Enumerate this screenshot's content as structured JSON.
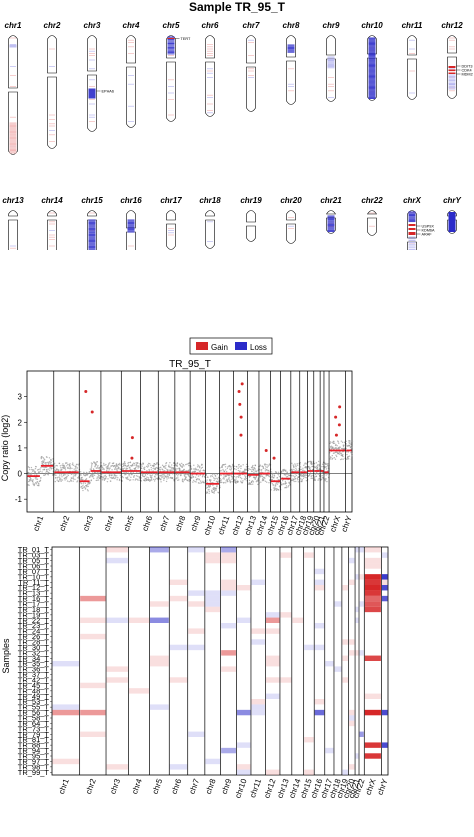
{
  "colors": {
    "gain": "#d62728",
    "loss": "#2b2bc9",
    "gain_light": "#f2b8b8",
    "loss_light": "#b8b8f0",
    "points": "#999999",
    "segment": "#e8202a"
  },
  "karyogram": {
    "title": "Sample TR_95_T",
    "row1": [
      "chr1",
      "chr2",
      "chr3",
      "chr4",
      "chr5",
      "chr6",
      "chr7",
      "chr8",
      "chr9",
      "chr10",
      "chr11",
      "chr12"
    ],
    "row2": [
      "chr13",
      "chr14",
      "chr15",
      "chr16",
      "chr17",
      "chr18",
      "chr19",
      "chr20",
      "chr21",
      "chr22",
      "chrX",
      "chrY"
    ],
    "gene_labels": {
      "chr3": [
        "EPHA6"
      ],
      "chr5": [
        "TERT"
      ],
      "chr12": [
        "DDIT3",
        "CDK4",
        "MDM2"
      ],
      "chrX": [
        "USP9X",
        "KDM6A",
        "ARAF"
      ]
    }
  },
  "chart_data": [
    {
      "type": "scatter",
      "title": "TR_95_T",
      "xlabel": "",
      "ylabel": "Copy ratio (log2)",
      "ylim": [
        -1.5,
        4
      ],
      "yticks": [
        -1,
        0,
        1,
        2,
        3
      ],
      "legend": {
        "placement": "top-center",
        "entries": [
          "Gain",
          "Loss"
        ]
      },
      "categories": [
        "chr1",
        "chr2",
        "chr3",
        "chr4",
        "chr5",
        "chr6",
        "chr7",
        "chr8",
        "chr9",
        "chr10",
        "chr11",
        "chr12",
        "chr13",
        "chr14",
        "chr15",
        "chr16",
        "chr17",
        "chr18",
        "chr19",
        "chr20",
        "chr21",
        "chr22",
        "chrX",
        "chrY"
      ],
      "segments": [
        {
          "chrom": "chr1",
          "value": -0.1
        },
        {
          "chrom": "chr1",
          "value": 0.3
        },
        {
          "chrom": "chr2",
          "value": 0.05
        },
        {
          "chrom": "chr3",
          "value": -0.3
        },
        {
          "chrom": "chr3",
          "value": 0.1
        },
        {
          "chrom": "chr4",
          "value": 0.05
        },
        {
          "chrom": "chr5",
          "value": 0.1
        },
        {
          "chrom": "chr6",
          "value": 0.05
        },
        {
          "chrom": "chr7",
          "value": 0.05
        },
        {
          "chrom": "chr8",
          "value": 0.05
        },
        {
          "chrom": "chr9",
          "value": 0.0
        },
        {
          "chrom": "chr10",
          "value": -0.4
        },
        {
          "chrom": "chr11",
          "value": 0.0
        },
        {
          "chrom": "chr12",
          "value": 0.0
        },
        {
          "chrom": "chr13",
          "value": -0.05
        },
        {
          "chrom": "chr14",
          "value": 0.0
        },
        {
          "chrom": "chr15",
          "value": -0.3
        },
        {
          "chrom": "chr16",
          "value": -0.2
        },
        {
          "chrom": "chr17",
          "value": 0.05
        },
        {
          "chrom": "chr18",
          "value": 0.05
        },
        {
          "chrom": "chr19",
          "value": 0.1
        },
        {
          "chrom": "chr20",
          "value": 0.1
        },
        {
          "chrom": "chr21",
          "value": 0.1
        },
        {
          "chrom": "chr22",
          "value": 0.05
        },
        {
          "chrom": "chrX",
          "value": 0.9
        },
        {
          "chrom": "chrY",
          "value": 0.9
        }
      ],
      "outliers": [
        {
          "chrom": "chr3",
          "value": 3.2
        },
        {
          "chrom": "chr3",
          "value": 2.4
        },
        {
          "chrom": "chr5",
          "value": 1.4
        },
        {
          "chrom": "chr5",
          "value": 0.6
        },
        {
          "chrom": "chr12",
          "value": 3.5
        },
        {
          "chrom": "chr12",
          "value": 3.2
        },
        {
          "chrom": "chr12",
          "value": 2.7
        },
        {
          "chrom": "chr12",
          "value": 2.2
        },
        {
          "chrom": "chr12",
          "value": 1.5
        },
        {
          "chrom": "chr14",
          "value": 0.9
        },
        {
          "chrom": "chr15",
          "value": 0.6
        },
        {
          "chrom": "chrX",
          "value": 2.6
        },
        {
          "chrom": "chrX",
          "value": 2.2
        },
        {
          "chrom": "chrX",
          "value": 1.9
        },
        {
          "chrom": "chrX",
          "value": 1.5
        }
      ]
    },
    {
      "type": "heatmap",
      "xlabel": "",
      "ylabel": "Samples",
      "columns": [
        "chr1",
        "chr2",
        "chr3",
        "chr4",
        "chr5",
        "chr6",
        "chr7",
        "chr8",
        "chr9",
        "chr10",
        "chr11",
        "chr12",
        "chr13",
        "chr14",
        "chr15",
        "chr16",
        "chr17",
        "chr18",
        "chr19",
        "chr20",
        "chr21",
        "chr22",
        "chrX",
        "chrY"
      ],
      "rows": [
        "TR_01_T",
        "TR_03_T",
        "TR_05_T",
        "TR_06_T",
        "TR_07_T",
        "TR_10_T",
        "TR_11_T",
        "TR_12_T",
        "TR_13_T",
        "TR_16_T",
        "TR_17_T",
        "TR_18_T",
        "TR_19_T",
        "TR_22_T",
        "TR_23_T",
        "TR_24_T",
        "TR_26_T",
        "TR_28_T",
        "TR_30_T",
        "TR_32_T",
        "TR_34_T",
        "TR_35_T",
        "TR_36_T",
        "TR_37_T",
        "TR_42_T",
        "TR_45_T",
        "TR_48_T",
        "TR_49_T",
        "TR_53_T",
        "TR_55_T",
        "TR_56_T",
        "TR_58_T",
        "TR_64_T",
        "TR_73_T",
        "TR_79_T",
        "TR_81_T",
        "TR_88_T",
        "TR_94_T",
        "TR_95_T",
        "TR_97_T",
        "TR_98_T",
        "TR_99_T"
      ],
      "cells": [
        {
          "row": "TR_10_T",
          "col": "chrX",
          "value": 1.0
        },
        {
          "row": "TR_11_T",
          "col": "chrX",
          "value": 0.9
        },
        {
          "row": "TR_12_T",
          "col": "chrX",
          "value": 1.0
        },
        {
          "row": "TR_13_T",
          "col": "chrX",
          "value": 0.9
        },
        {
          "row": "TR_16_T",
          "col": "chrX",
          "value": 0.6
        },
        {
          "row": "TR_17_T",
          "col": "chrX",
          "value": 0.7
        },
        {
          "row": "TR_18_T",
          "col": "chrX",
          "value": 0.8
        },
        {
          "row": "TR_34_T",
          "col": "chrX",
          "value": 0.8
        },
        {
          "row": "TR_56_T",
          "col": "chrX",
          "value": 1.0
        },
        {
          "row": "TR_88_T",
          "col": "chrX",
          "value": 0.9
        },
        {
          "row": "TR_95_T",
          "col": "chrX",
          "value": 0.9
        },
        {
          "row": "TR_10_T",
          "col": "chrY",
          "value": -0.9
        },
        {
          "row": "TR_12_T",
          "col": "chrY",
          "value": -0.8
        },
        {
          "row": "TR_16_T",
          "col": "chrY",
          "value": -0.7
        },
        {
          "row": "TR_56_T",
          "col": "chrY",
          "value": -0.8
        },
        {
          "row": "TR_88_T",
          "col": "chrY",
          "value": -0.8
        },
        {
          "row": "TR_16_T",
          "col": "chr2",
          "value": 0.3
        },
        {
          "row": "TR_56_T",
          "col": "chr1",
          "value": 0.3
        },
        {
          "row": "TR_56_T",
          "col": "chr2",
          "value": 0.3
        },
        {
          "row": "TR_56_T",
          "col": "chr10",
          "value": -0.4
        },
        {
          "row": "TR_56_T",
          "col": "chr16",
          "value": -0.6
        },
        {
          "row": "TR_22_T",
          "col": "chr5",
          "value": -0.4
        },
        {
          "row": "TR_22_T",
          "col": "chr12",
          "value": 0.3
        },
        {
          "row": "TR_01_T",
          "col": "chr5",
          "value": -0.2
        },
        {
          "row": "TR_01_T",
          "col": "chr9",
          "value": -0.2
        },
        {
          "row": "TR_32_T",
          "col": "chr9",
          "value": 0.3
        },
        {
          "row": "TR_94_T",
          "col": "chr9",
          "value": -0.2
        },
        {
          "row": "TR_79_T",
          "col": "chr22",
          "value": -0.3
        }
      ]
    }
  ]
}
